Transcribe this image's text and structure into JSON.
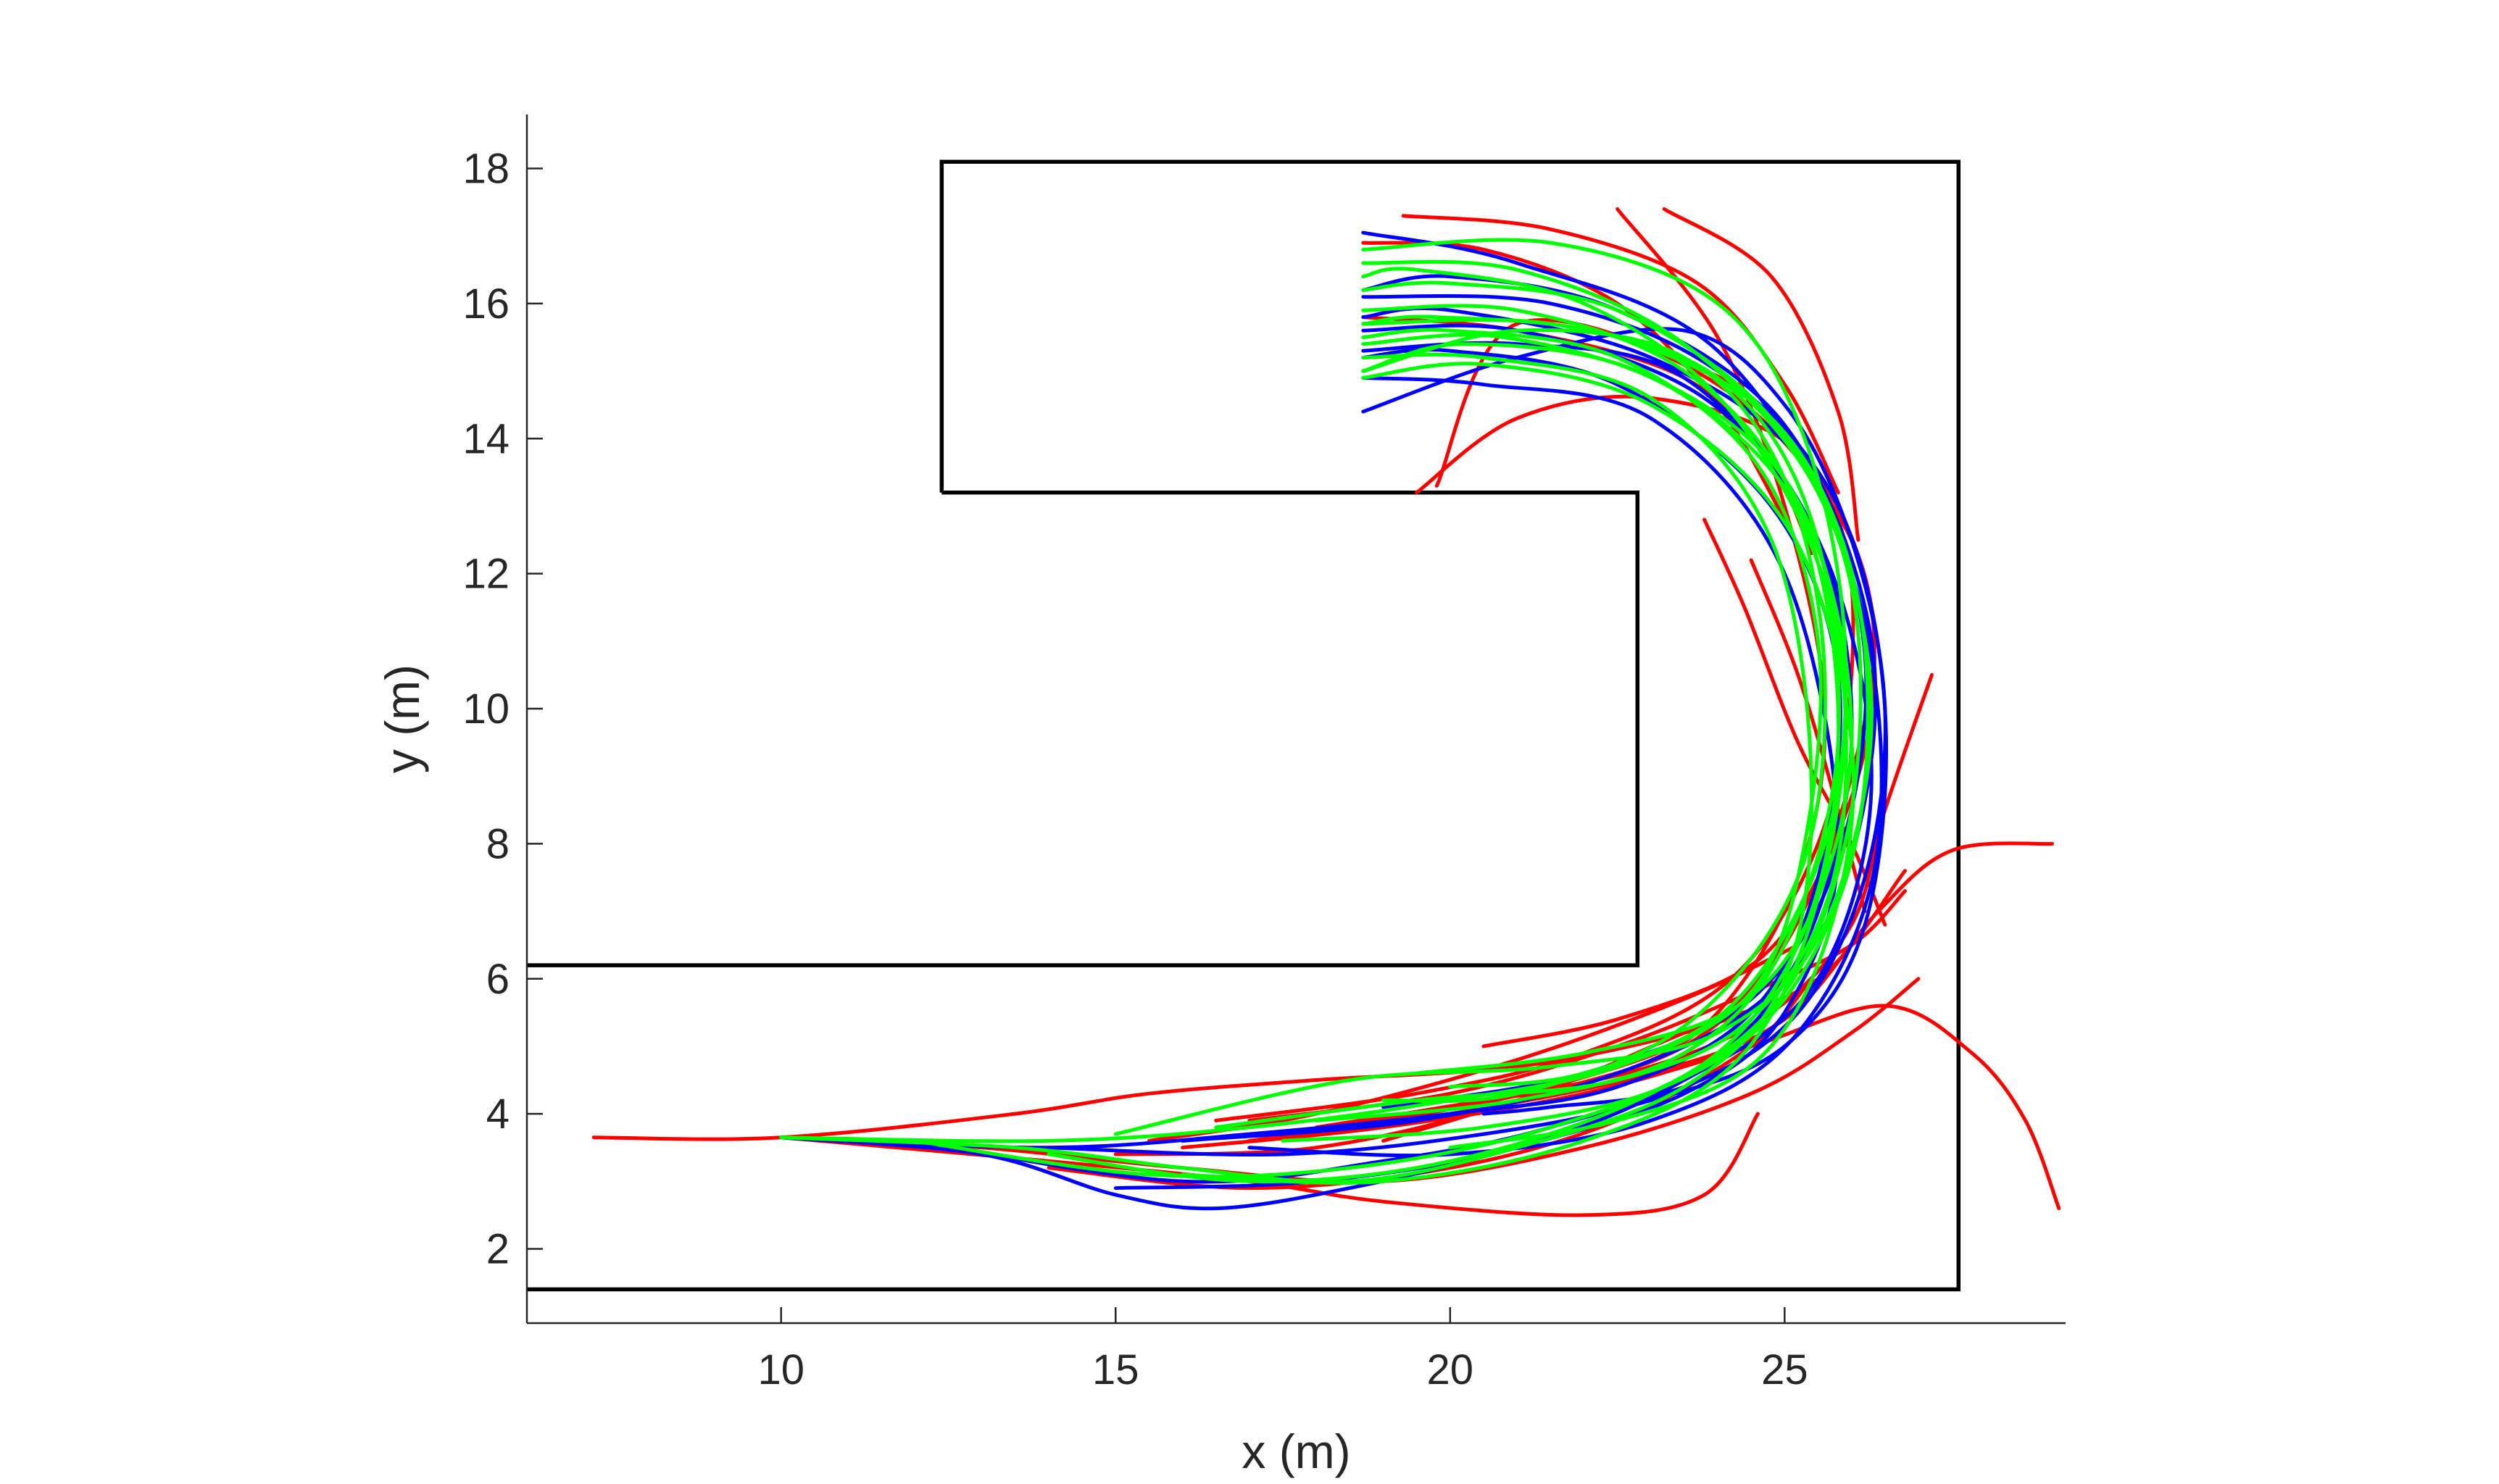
{
  "chart_data": {
    "type": "line",
    "title": "",
    "xlabel": "x (m)",
    "ylabel": "y (m)",
    "xlim": [
      6.2,
      29.2
    ],
    "ylim": [
      0.9,
      18.8
    ],
    "xticks": [
      10,
      15,
      20,
      25
    ],
    "yticks": [
      2,
      4,
      6,
      8,
      10,
      12,
      14,
      16,
      18
    ],
    "grid": false,
    "legend": "none",
    "colors": {
      "axes": "#262626",
      "walls": "#000000",
      "red": "#ff0000",
      "blue": "#0000ff",
      "green": "#00ff00"
    },
    "walls": [
      {
        "name": "boundary",
        "points": [
          [
            12.4,
            13.2
          ],
          [
            12.4,
            18.1
          ],
          [
            27.6,
            18.1
          ],
          [
            27.6,
            1.4
          ],
          [
            6.2,
            1.4
          ]
        ]
      },
      {
        "name": "inner-wall",
        "points": [
          [
            12.4,
            13.2
          ],
          [
            22.8,
            13.2
          ],
          [
            22.8,
            6.2
          ],
          [
            6.2,
            6.2
          ]
        ]
      }
    ],
    "series": [
      {
        "color": "red",
        "x": [
          7.2,
          10.0,
          13.5,
          15.5,
          18.0,
          21.0,
          23.5,
          25.2
        ],
        "y": [
          3.65,
          3.65,
          4.0,
          4.3,
          4.5,
          4.7,
          5.2,
          5.8
        ]
      },
      {
        "color": "red",
        "x": [
          10.0,
          13.0,
          16.0,
          19.0,
          22.0,
          24.5,
          26.0,
          27.0
        ],
        "y": [
          3.65,
          3.5,
          3.2,
          3.0,
          3.5,
          4.3,
          5.2,
          6.0
        ]
      },
      {
        "color": "red",
        "x": [
          10.0,
          14.0,
          17.0,
          19.0,
          22.0,
          23.8,
          24.6
        ],
        "y": [
          3.65,
          3.3,
          3.0,
          2.7,
          2.5,
          2.8,
          4.0
        ]
      },
      {
        "color": "red",
        "x": [
          16.0,
          19.0,
          22.0,
          24.5,
          26.5,
          27.8,
          28.6,
          29.1
        ],
        "y": [
          3.5,
          3.8,
          4.3,
          5.0,
          5.6,
          4.9,
          3.9,
          2.6
        ]
      },
      {
        "color": "red",
        "x": [
          17.0,
          20.0,
          23.0,
          25.0,
          26.4,
          27.5,
          29.0
        ],
        "y": [
          3.6,
          4.0,
          4.6,
          5.4,
          7.0,
          7.9,
          8.0
        ]
      },
      {
        "color": "red",
        "x": [
          18.0,
          20.5,
          23.0,
          24.8,
          26.0,
          26.5,
          27.2
        ],
        "y": [
          3.8,
          4.2,
          4.7,
          5.5,
          6.8,
          8.5,
          10.5
        ]
      },
      {
        "color": "red",
        "x": [
          17.5,
          20.0,
          22.5,
          24.0,
          25.2,
          25.6,
          25.0,
          24.0,
          22.5
        ],
        "y": [
          3.7,
          4.1,
          4.6,
          5.5,
          7.5,
          10.0,
          13.0,
          15.5,
          17.4
        ]
      },
      {
        "color": "red",
        "x": [
          16.5,
          19.5,
          22.0,
          24.2,
          25.5,
          26.0,
          25.8,
          24.5,
          23.0
        ],
        "y": [
          3.9,
          4.3,
          4.9,
          6.0,
          8.0,
          10.5,
          12.8,
          14.6,
          15.3
        ]
      },
      {
        "color": "red",
        "x": [
          19.0,
          21.0,
          23.5,
          25.0,
          26.0,
          26.3,
          25.2,
          23.0,
          21.0,
          19.5
        ],
        "y": [
          3.6,
          4.2,
          5.0,
          6.5,
          9.0,
          11.5,
          13.8,
          14.6,
          14.3,
          13.2
        ]
      },
      {
        "color": "red",
        "x": [
          18.5,
          21.5,
          24.0,
          25.5,
          26.3,
          26.0,
          24.0,
          21.0,
          19.8
        ],
        "y": [
          3.8,
          4.4,
          5.4,
          7.5,
          10.0,
          12.5,
          14.8,
          15.7,
          13.3
        ]
      },
      {
        "color": "red",
        "x": [
          18.7,
          20.5,
          22.5,
          24.0,
          25.0
        ],
        "y": [
          16.9,
          16.8,
          16.0,
          14.5,
          12.8
        ]
      },
      {
        "color": "red",
        "x": [
          18.7,
          21.0,
          23.5,
          24.8,
          25.4
        ],
        "y": [
          15.8,
          15.6,
          14.9,
          13.6,
          12.3
        ]
      },
      {
        "color": "red",
        "x": [
          14.0,
          17.0,
          20.0,
          22.5,
          24.5,
          25.4
        ],
        "y": [
          3.2,
          2.9,
          3.2,
          3.9,
          5.0,
          6.0
        ]
      },
      {
        "color": "red",
        "x": [
          17.0,
          20.0,
          22.5,
          24.5,
          26.0,
          26.8
        ],
        "y": [
          3.9,
          4.3,
          5.0,
          5.8,
          6.5,
          7.3
        ]
      },
      {
        "color": "red",
        "x": [
          15.0,
          18.0,
          21.0,
          23.5,
          25.5,
          26.8
        ],
        "y": [
          3.4,
          3.5,
          4.2,
          5.2,
          6.0,
          7.6
        ]
      },
      {
        "color": "red",
        "x": [
          15.5,
          18.0,
          21.0,
          23.5,
          25.2
        ],
        "y": [
          3.6,
          4.0,
          4.8,
          5.7,
          6.5
        ]
      },
      {
        "color": "red",
        "x": [
          19.3,
          21.5,
          23.7,
          25.0,
          25.8
        ],
        "y": [
          17.3,
          17.1,
          16.3,
          14.8,
          13.2
        ]
      },
      {
        "color": "red",
        "x": [
          23.2,
          24.8,
          25.8,
          26.1
        ],
        "y": [
          17.4,
          16.4,
          14.4,
          12.5
        ]
      },
      {
        "color": "red",
        "x": [
          23.8,
          24.4,
          25.2,
          26.0,
          26.5
        ],
        "y": [
          12.8,
          11.5,
          9.5,
          8.0,
          6.8
        ]
      },
      {
        "color": "red",
        "x": [
          24.5,
          25.2,
          25.8,
          26.2
        ],
        "y": [
          12.2,
          10.5,
          8.5,
          7.0
        ]
      },
      {
        "color": "red",
        "x": [
          20.5,
          22.5,
          24.5,
          25.6
        ],
        "y": [
          5.0,
          5.4,
          6.2,
          7.5
        ]
      },
      {
        "color": "blue",
        "x": [
          10.0,
          13.0,
          15.0,
          16.5,
          18.5,
          21.0,
          23.5,
          25.0,
          25.8,
          25.0,
          23.0,
          20.5,
          18.7
        ],
        "y": [
          3.65,
          3.4,
          2.8,
          2.6,
          2.9,
          3.5,
          4.3,
          5.5,
          8.0,
          12.0,
          14.3,
          14.8,
          14.9
        ]
      },
      {
        "color": "blue",
        "x": [
          10.0,
          14.0,
          17.0,
          20.0,
          22.5,
          24.5,
          25.5,
          25.8,
          24.8,
          22.5,
          20.0,
          18.7
        ],
        "y": [
          3.65,
          3.5,
          3.7,
          4.0,
          4.4,
          5.5,
          7.5,
          10.5,
          13.0,
          14.8,
          15.3,
          15.2
        ]
      },
      {
        "color": "blue",
        "x": [
          12.0,
          16.0,
          19.0,
          21.5,
          23.8,
          25.3,
          26.0,
          25.5,
          23.8,
          21.0,
          18.7
        ],
        "y": [
          3.6,
          3.0,
          3.3,
          3.8,
          4.7,
          6.5,
          9.5,
          12.5,
          14.6,
          15.6,
          15.6
        ]
      },
      {
        "color": "blue",
        "x": [
          14.0,
          17.5,
          20.5,
          23.0,
          25.0,
          26.2,
          26.5,
          25.8,
          24.0,
          21.5,
          18.7
        ],
        "y": [
          3.5,
          3.4,
          3.7,
          4.2,
          5.0,
          6.8,
          10.0,
          13.0,
          15.0,
          16.0,
          16.1
        ]
      },
      {
        "color": "blue",
        "x": [
          16.0,
          19.5,
          22.5,
          24.8,
          26.0,
          26.3,
          25.0,
          22.5,
          20.0,
          18.7
        ],
        "y": [
          3.6,
          3.9,
          4.6,
          5.8,
          7.8,
          11.0,
          14.2,
          15.9,
          16.4,
          16.2
        ]
      },
      {
        "color": "blue",
        "x": [
          17.0,
          20.0,
          23.0,
          25.2,
          26.4,
          26.0,
          24.0,
          21.0,
          18.7
        ],
        "y": [
          3.5,
          3.4,
          3.9,
          5.2,
          8.0,
          12.0,
          15.3,
          16.6,
          17.05
        ]
      },
      {
        "color": "blue",
        "x": [
          18.7,
          21.0,
          23.5,
          25.0,
          26.0,
          26.5,
          26.2,
          25.2,
          23.5,
          21.5,
          20.5
        ],
        "y": [
          14.4,
          15.2,
          15.6,
          14.5,
          12.5,
          10.0,
          7.5,
          5.5,
          4.4,
          4.1,
          4.0
        ]
      },
      {
        "color": "blue",
        "x": [
          15.0,
          18.0,
          21.0,
          23.5,
          25.5,
          26.3,
          25.5,
          23.5,
          21.0,
          18.7
        ],
        "y": [
          2.9,
          3.0,
          3.5,
          4.5,
          6.0,
          9.0,
          12.5,
          14.9,
          15.4,
          15.3
        ]
      },
      {
        "color": "blue",
        "x": [
          19.0,
          22.0,
          24.5,
          25.8,
          26.2,
          25.3,
          23.0,
          20.0,
          18.7
        ],
        "y": [
          4.1,
          4.6,
          5.7,
          7.8,
          10.8,
          13.6,
          15.2,
          15.9,
          15.8
        ]
      },
      {
        "color": "green",
        "x": [
          10.0,
          13.5,
          16.0,
          18.5,
          21.0,
          23.5,
          25.0,
          25.4,
          24.8,
          23.0,
          20.5,
          18.7
        ],
        "y": [
          3.65,
          3.5,
          3.2,
          3.0,
          3.5,
          4.4,
          6.0,
          9.0,
          12.5,
          14.6,
          15.2,
          15.2
        ]
      },
      {
        "color": "green",
        "x": [
          10.0,
          14.0,
          17.0,
          20.0,
          22.5,
          24.5,
          25.3,
          25.5,
          24.6,
          22.5,
          20.0,
          18.7
        ],
        "y": [
          3.65,
          3.6,
          3.8,
          4.2,
          4.7,
          5.8,
          8.0,
          11.0,
          13.6,
          15.2,
          15.6,
          15.5
        ]
      },
      {
        "color": "green",
        "x": [
          12.0,
          15.5,
          18.5,
          21.5,
          24.0,
          25.4,
          25.8,
          25.2,
          23.5,
          21.0,
          18.7
        ],
        "y": [
          3.6,
          3.1,
          3.2,
          3.8,
          4.9,
          7.0,
          10.0,
          13.0,
          15.0,
          15.9,
          15.9
        ]
      },
      {
        "color": "green",
        "x": [
          14.0,
          17.0,
          20.0,
          23.0,
          25.0,
          26.0,
          26.0,
          24.8,
          22.5,
          20.0,
          18.7
        ],
        "y": [
          3.4,
          3.0,
          3.3,
          4.3,
          5.8,
          8.5,
          11.8,
          14.3,
          15.9,
          16.3,
          16.2
        ]
      },
      {
        "color": "green",
        "x": [
          15.0,
          18.5,
          21.5,
          24.0,
          25.6,
          26.3,
          25.5,
          23.5,
          21.0,
          18.7
        ],
        "y": [
          3.7,
          4.5,
          4.7,
          5.2,
          6.8,
          10.0,
          13.2,
          15.4,
          16.5,
          16.6
        ]
      },
      {
        "color": "green",
        "x": [
          16.5,
          19.5,
          22.5,
          24.6,
          25.8,
          25.7,
          24.2,
          22.0,
          19.5,
          18.7
        ],
        "y": [
          3.8,
          4.2,
          4.5,
          5.5,
          7.8,
          11.5,
          14.4,
          16.0,
          16.5,
          16.4
        ]
      },
      {
        "color": "green",
        "x": [
          18.0,
          21.0,
          23.5,
          25.0,
          25.8,
          25.4,
          24.0,
          21.5,
          18.7
        ],
        "y": [
          3.9,
          4.2,
          4.9,
          6.5,
          9.5,
          12.8,
          14.9,
          15.7,
          15.7
        ]
      },
      {
        "color": "green",
        "x": [
          18.7,
          21.5,
          24.0,
          25.3,
          25.9,
          25.6,
          24.2,
          22.0,
          20.0
        ],
        "y": [
          16.8,
          16.9,
          16.0,
          14.0,
          11.0,
          8.0,
          5.6,
          4.6,
          4.4
        ]
      },
      {
        "color": "green",
        "x": [
          18.7,
          21.0,
          23.5,
          25.0,
          25.6,
          25.2,
          23.5,
          21.0,
          19.0
        ],
        "y": [
          15.0,
          15.6,
          15.2,
          13.4,
          10.5,
          7.5,
          5.3,
          4.3,
          4.2
        ]
      },
      {
        "color": "green",
        "x": [
          16.0,
          19.0,
          22.0,
          24.3,
          25.5,
          25.9,
          25.0,
          22.8,
          20.2,
          18.7
        ],
        "y": [
          3.1,
          3.0,
          3.6,
          4.8,
          7.2,
          10.5,
          13.4,
          15.0,
          15.4,
          15.0
        ]
      },
      {
        "color": "green",
        "x": [
          17.5,
          20.5,
          23.2,
          25.0,
          26.1,
          26.1,
          24.9,
          22.5,
          19.8,
          18.7
        ],
        "y": [
          3.6,
          3.8,
          4.4,
          5.7,
          8.2,
          11.6,
          14.2,
          15.5,
          15.8,
          15.7
        ]
      },
      {
        "color": "green",
        "x": [
          19.5,
          22.0,
          24.3,
          25.5,
          26.0,
          25.3,
          23.4,
          20.8,
          18.7
        ],
        "y": [
          4.6,
          4.9,
          5.6,
          7.2,
          9.8,
          12.8,
          14.7,
          15.5,
          15.4
        ]
      },
      {
        "color": "green",
        "x": [
          20.0,
          22.5,
          24.6,
          25.7,
          26.0,
          25.1,
          23.0,
          20.5,
          18.7
        ],
        "y": [
          3.5,
          3.9,
          4.8,
          6.8,
          9.5,
          12.6,
          14.5,
          15.1,
          14.9
        ]
      }
    ]
  }
}
